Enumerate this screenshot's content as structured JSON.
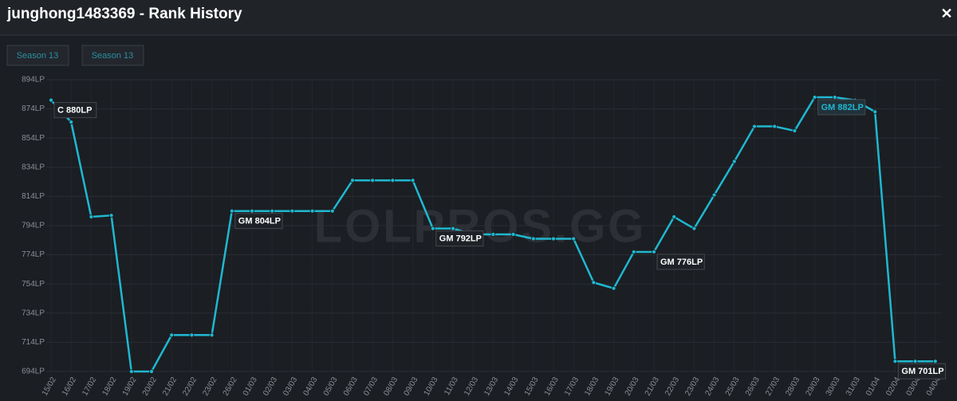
{
  "header": {
    "title": "junghong1483369 - Rank History",
    "close": "✕"
  },
  "buttons": [
    "Season 13",
    "Season 13"
  ],
  "watermark": "LOLPROS.GG",
  "chart_data": {
    "type": "line",
    "categories": [
      "15/02",
      "16/02",
      "17/02",
      "18/02",
      "19/02",
      "20/02",
      "21/02",
      "22/02",
      "23/02",
      "26/02",
      "01/03",
      "02/03",
      "03/03",
      "04/03",
      "05/03",
      "06/03",
      "07/03",
      "08/03",
      "09/03",
      "10/03",
      "11/03",
      "12/03",
      "13/03",
      "14/03",
      "15/03",
      "16/03",
      "17/03",
      "18/03",
      "19/03",
      "20/03",
      "21/03",
      "22/03",
      "23/03",
      "24/03",
      "25/03",
      "26/03",
      "27/03",
      "28/03",
      "29/03",
      "30/03",
      "31/03",
      "01/04",
      "02/04",
      "03/04",
      "04/04"
    ],
    "series": [
      {
        "name": "LP",
        "color": "#1fb8d0",
        "values": [
          880,
          865,
          800,
          801,
          694,
          694,
          719,
          719,
          719,
          804,
          804,
          804,
          804,
          804,
          804,
          825,
          825,
          825,
          825,
          792,
          792,
          788,
          788,
          788,
          785,
          785,
          785,
          755,
          751,
          776,
          776,
          800,
          792,
          815,
          838,
          862,
          862,
          859,
          882,
          882,
          880,
          872,
          701,
          701,
          701
        ],
        "value_labels": [
          "C 880LP",
          null,
          null,
          null,
          null,
          null,
          null,
          null,
          null,
          "GM 804LP",
          null,
          null,
          null,
          null,
          null,
          null,
          null,
          null,
          null,
          "GM 792LP",
          null,
          null,
          null,
          null,
          null,
          null,
          null,
          null,
          null,
          null,
          "GM 776LP",
          null,
          null,
          null,
          null,
          null,
          null,
          null,
          "GM 882LP",
          null,
          null,
          null,
          "GM 701LP",
          null,
          null
        ]
      }
    ],
    "ylim": [
      694,
      894
    ],
    "yticks": [
      {
        "value": 694,
        "label": "694LP"
      },
      {
        "value": 714,
        "label": "714LP"
      },
      {
        "value": 734,
        "label": "734LP"
      },
      {
        "value": 754,
        "label": "754LP"
      },
      {
        "value": 774,
        "label": "774LP"
      },
      {
        "value": 794,
        "label": "794LP"
      },
      {
        "value": 814,
        "label": "814LP"
      },
      {
        "value": 834,
        "label": "834LP"
      },
      {
        "value": 854,
        "label": "854LP"
      },
      {
        "value": 874,
        "label": "874LP"
      },
      {
        "value": 894,
        "label": "894LP"
      }
    ],
    "grid": true
  }
}
